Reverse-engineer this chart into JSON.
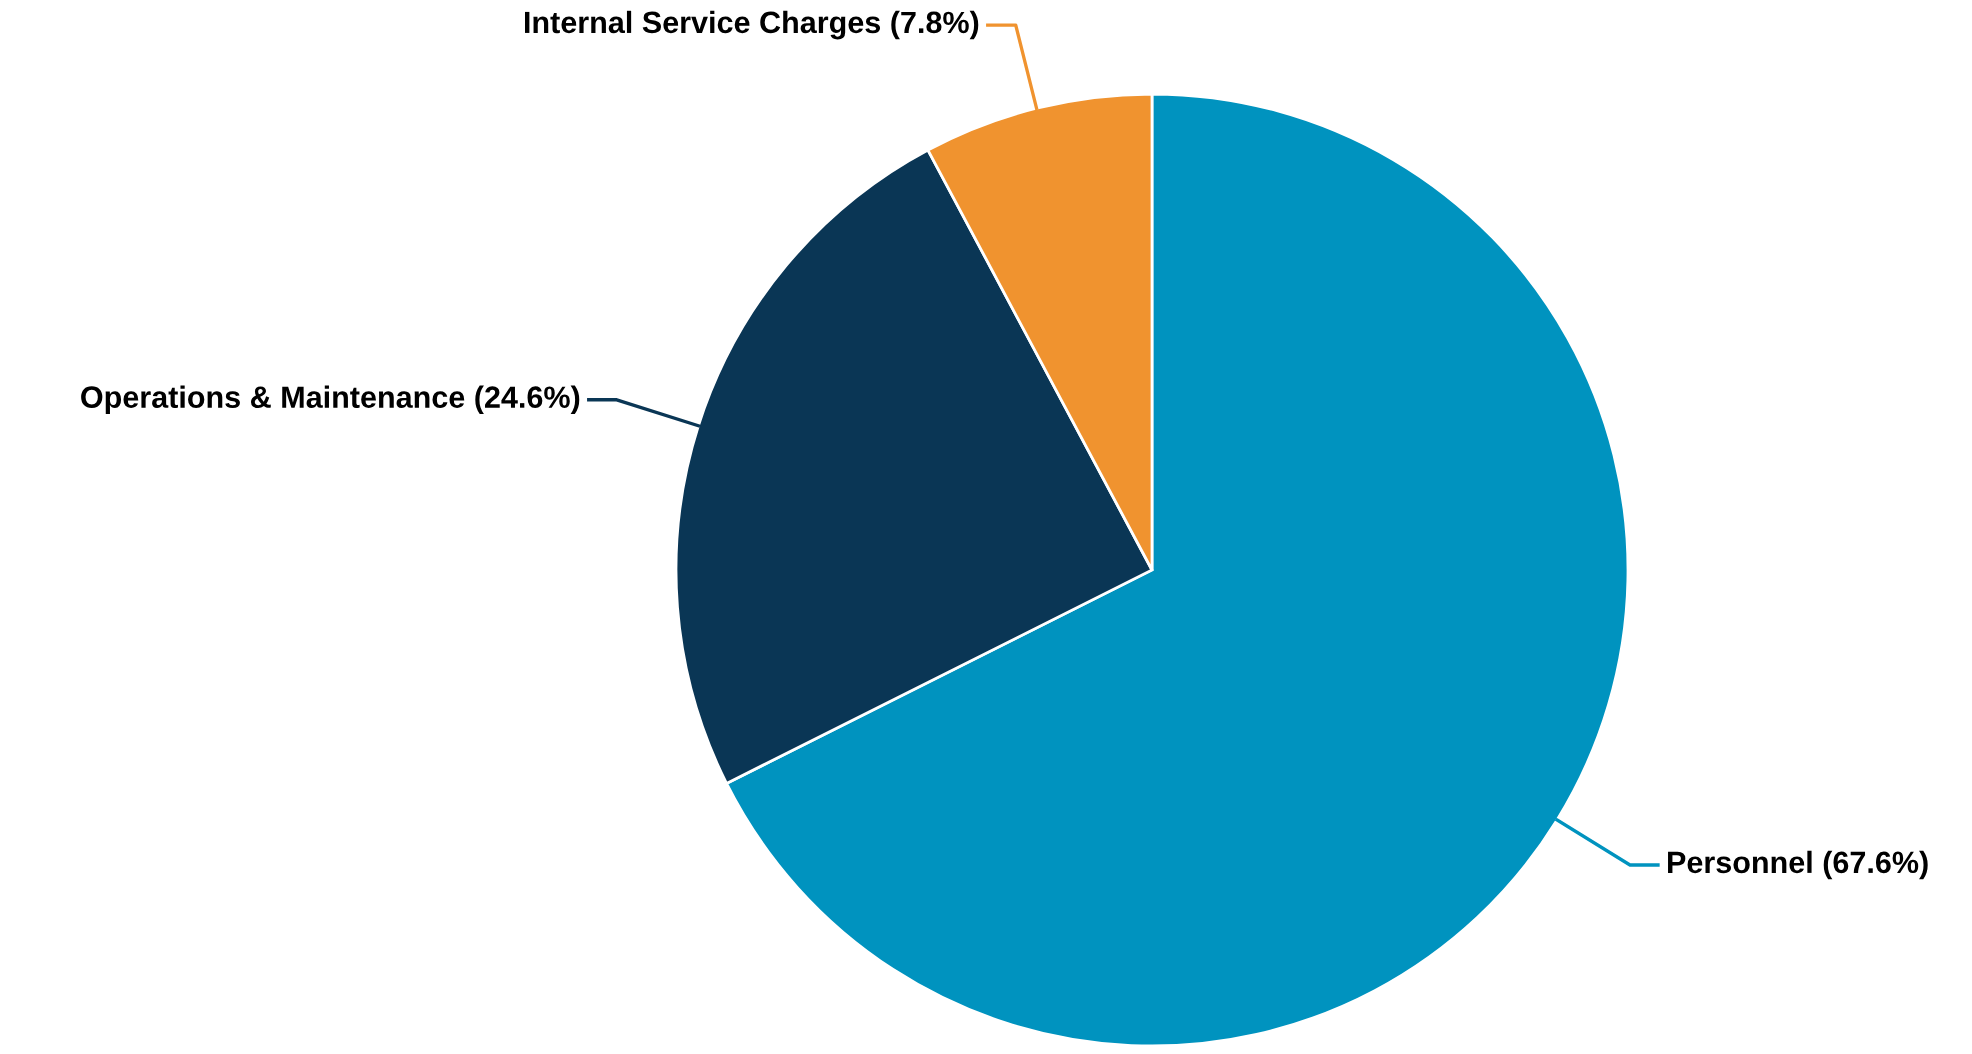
{
  "chart_data": {
    "type": "pie",
    "categories": [
      "Personnel (67.6%)",
      "Operations & Maintenance (24.6%)",
      "Internal Service Charges (7.8%)"
    ],
    "values": [
      67.6,
      24.6,
      7.8
    ],
    "colors": [
      "#0093bf",
      "#0a3655",
      "#f0932f"
    ],
    "legend": false
  }
}
